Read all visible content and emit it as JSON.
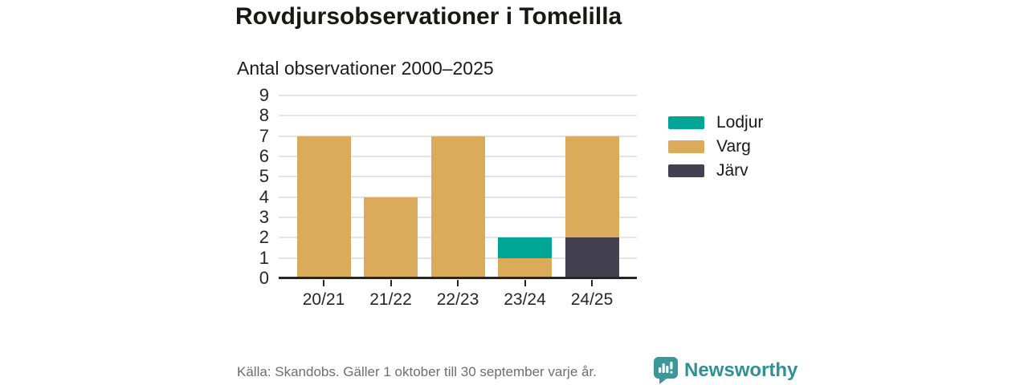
{
  "title": "Rovdjursobservationer i Tomelilla",
  "chart_data": {
    "type": "bar",
    "stacked": true,
    "subtitle": "Antal observationer 2000–2025",
    "categories": [
      "20/21",
      "21/22",
      "22/23",
      "23/24",
      "24/25"
    ],
    "series": [
      {
        "name": "Lodjur",
        "color": "#00a596",
        "values": [
          0,
          0,
          0,
          1,
          0
        ]
      },
      {
        "name": "Varg",
        "color": "#d9ab5b",
        "values": [
          7,
          4,
          7,
          1,
          5
        ]
      },
      {
        "name": "Järv",
        "color": "#434050",
        "values": [
          0,
          0,
          0,
          0,
          2
        ]
      }
    ],
    "stack_totals": [
      7,
      4,
      7,
      2,
      7
    ],
    "stack_order_bottom_to_top": [
      "Järv",
      "Varg",
      "Lodjur"
    ],
    "ylim": [
      0,
      9
    ],
    "ytick_step": 1,
    "yticks": [
      0,
      1,
      2,
      3,
      4,
      5,
      6,
      7,
      8,
      9
    ],
    "grid": true,
    "legend_position": "right"
  },
  "footer": {
    "source": "Källa: Skandobs. Gäller 1 oktober till 30 september varje år.",
    "brand": "Newsworthy"
  },
  "colors": {
    "axis": "#262626",
    "grid": "#e4e4e4",
    "text": "#1a1a1a",
    "muted_text": "#6e6e6e",
    "brand_teal": "#2f9196",
    "brand_icon_teal": "#3a989c"
  }
}
